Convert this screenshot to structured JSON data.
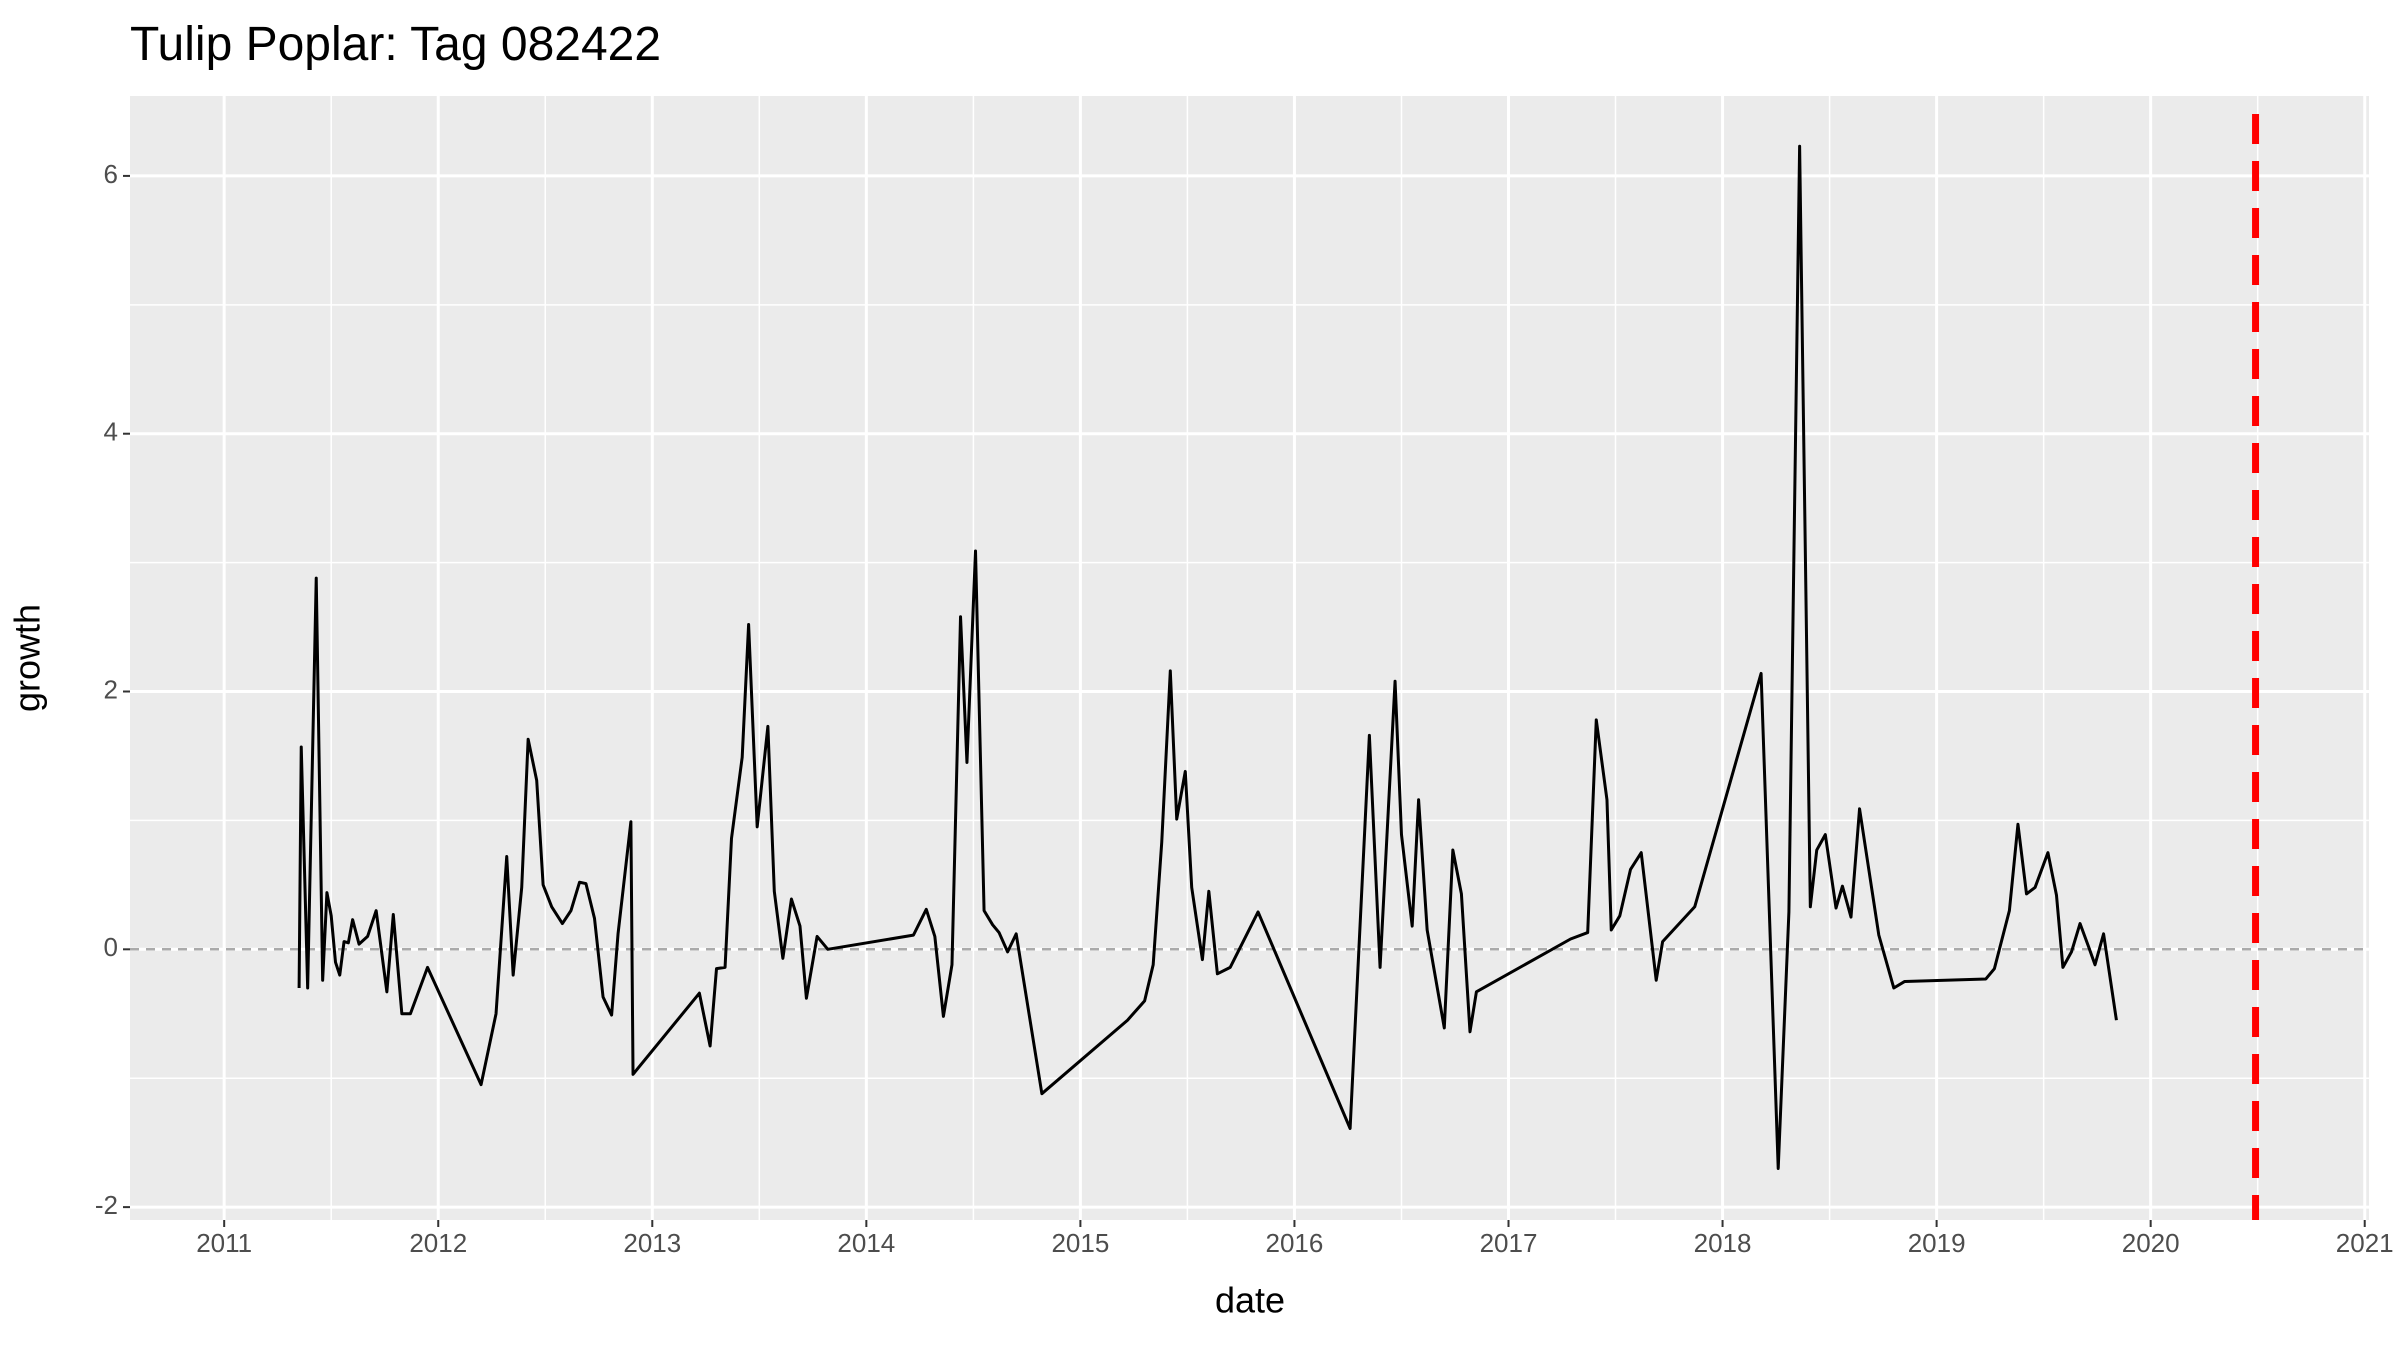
{
  "chart_data": {
    "type": "line",
    "title": "Tulip Poplar: Tag 082422",
    "x_label": "date",
    "y_label": "growth",
    "x": [
      2011.35,
      2011.36,
      2011.39,
      2011.43,
      2011.46,
      2011.48,
      2011.5,
      2011.52,
      2011.54,
      2011.56,
      2011.58,
      2011.6,
      2011.63,
      2011.67,
      2011.71,
      2011.76,
      2011.79,
      2011.83,
      2011.87,
      2011.95,
      2012.2,
      2012.27,
      2012.32,
      2012.35,
      2012.39,
      2012.42,
      2012.46,
      2012.49,
      2012.53,
      2012.58,
      2012.62,
      2012.66,
      2012.69,
      2012.73,
      2012.77,
      2012.81,
      2012.84,
      2012.9,
      2012.91,
      2013.22,
      2013.27,
      2013.3,
      2013.34,
      2013.37,
      2013.42,
      2013.45,
      2013.49,
      2013.54,
      2013.57,
      2013.61,
      2013.65,
      2013.69,
      2013.72,
      2013.77,
      2013.82,
      2014.22,
      2014.28,
      2014.32,
      2014.36,
      2014.4,
      2014.44,
      2014.47,
      2014.51,
      2014.55,
      2014.59,
      2014.62,
      2014.66,
      2014.7,
      2014.82,
      2015.22,
      2015.3,
      2015.34,
      2015.38,
      2015.42,
      2015.45,
      2015.49,
      2015.52,
      2015.57,
      2015.6,
      2015.64,
      2015.7,
      2015.83,
      2016.26,
      2016.35,
      2016.4,
      2016.47,
      2016.5,
      2016.55,
      2016.58,
      2016.62,
      2016.7,
      2016.74,
      2016.78,
      2016.82,
      2016.85,
      2017.29,
      2017.37,
      2017.41,
      2017.46,
      2017.48,
      2017.52,
      2017.57,
      2017.62,
      2017.69,
      2017.72,
      2017.87,
      2018.18,
      2018.26,
      2018.31,
      2018.36,
      2018.41,
      2018.44,
      2018.48,
      2018.53,
      2018.56,
      2018.6,
      2018.64,
      2018.73,
      2018.8,
      2018.85,
      2019.23,
      2019.27,
      2019.34,
      2019.38,
      2019.42,
      2019.46,
      2019.52,
      2019.56,
      2019.59,
      2019.63,
      2019.67,
      2019.71,
      2019.74,
      2019.78,
      2019.84
    ],
    "series": [
      {
        "color": "#000000",
        "values": [
          -0.3,
          1.57,
          -0.3,
          2.88,
          -0.24,
          0.44,
          0.26,
          -0.1,
          -0.2,
          0.06,
          0.05,
          0.23,
          0.04,
          0.1,
          0.3,
          -0.33,
          0.27,
          -0.5,
          -0.5,
          -0.14,
          -1.05,
          -0.5,
          0.72,
          -0.2,
          0.48,
          1.63,
          1.31,
          0.5,
          0.33,
          0.2,
          0.3,
          0.52,
          0.51,
          0.24,
          -0.37,
          -0.51,
          0.12,
          0.99,
          -0.97,
          -0.34,
          -0.75,
          -0.15,
          -0.14,
          0.86,
          1.49,
          2.52,
          0.95,
          1.73,
          0.45,
          -0.07,
          0.39,
          0.18,
          -0.38,
          0.1,
          0.0,
          0.11,
          0.31,
          0.1,
          -0.52,
          -0.12,
          2.58,
          1.45,
          3.09,
          0.3,
          0.19,
          0.13,
          -0.02,
          0.12,
          -1.12,
          -0.55,
          -0.4,
          -0.12,
          0.83,
          2.16,
          1.01,
          1.38,
          0.48,
          -0.08,
          0.45,
          -0.19,
          -0.14,
          0.29,
          -1.39,
          1.66,
          -0.14,
          2.08,
          0.89,
          0.18,
          1.16,
          0.15,
          -0.61,
          0.77,
          0.43,
          -0.64,
          -0.33,
          0.08,
          0.13,
          1.78,
          1.16,
          0.15,
          0.26,
          0.62,
          0.75,
          -0.24,
          0.06,
          0.33,
          2.14,
          -1.7,
          0.29,
          6.23,
          0.33,
          0.77,
          0.89,
          0.32,
          0.49,
          0.25,
          1.09,
          0.11,
          -0.3,
          -0.25,
          -0.23,
          -0.15,
          0.3,
          0.97,
          0.43,
          0.48,
          0.75,
          0.42,
          -0.14,
          -0.02,
          0.2,
          0.02,
          -0.12,
          0.12,
          -0.55
        ]
      }
    ],
    "xlim": [
      2010.56,
      2021.02
    ],
    "xticks": [
      2011,
      2012,
      2013,
      2014,
      2015,
      2016,
      2017,
      2018,
      2019,
      2020,
      2021
    ],
    "x_minor_ticks": [
      2010.5,
      2011.5,
      2012.5,
      2013.5,
      2014.5,
      2015.5,
      2016.5,
      2017.5,
      2018.5,
      2019.5,
      2020.5
    ],
    "ylim": [
      -2.1,
      6.62
    ],
    "yticks": [
      -2,
      0,
      2,
      4,
      6
    ],
    "y_minor_ticks": [
      -1,
      1,
      3,
      5
    ],
    "grid": true,
    "hlines": [
      {
        "y": 0,
        "color": "#aaaaaa"
      }
    ],
    "vlines": [
      {
        "x": 2020.49,
        "color": "#ff0000"
      }
    ]
  }
}
